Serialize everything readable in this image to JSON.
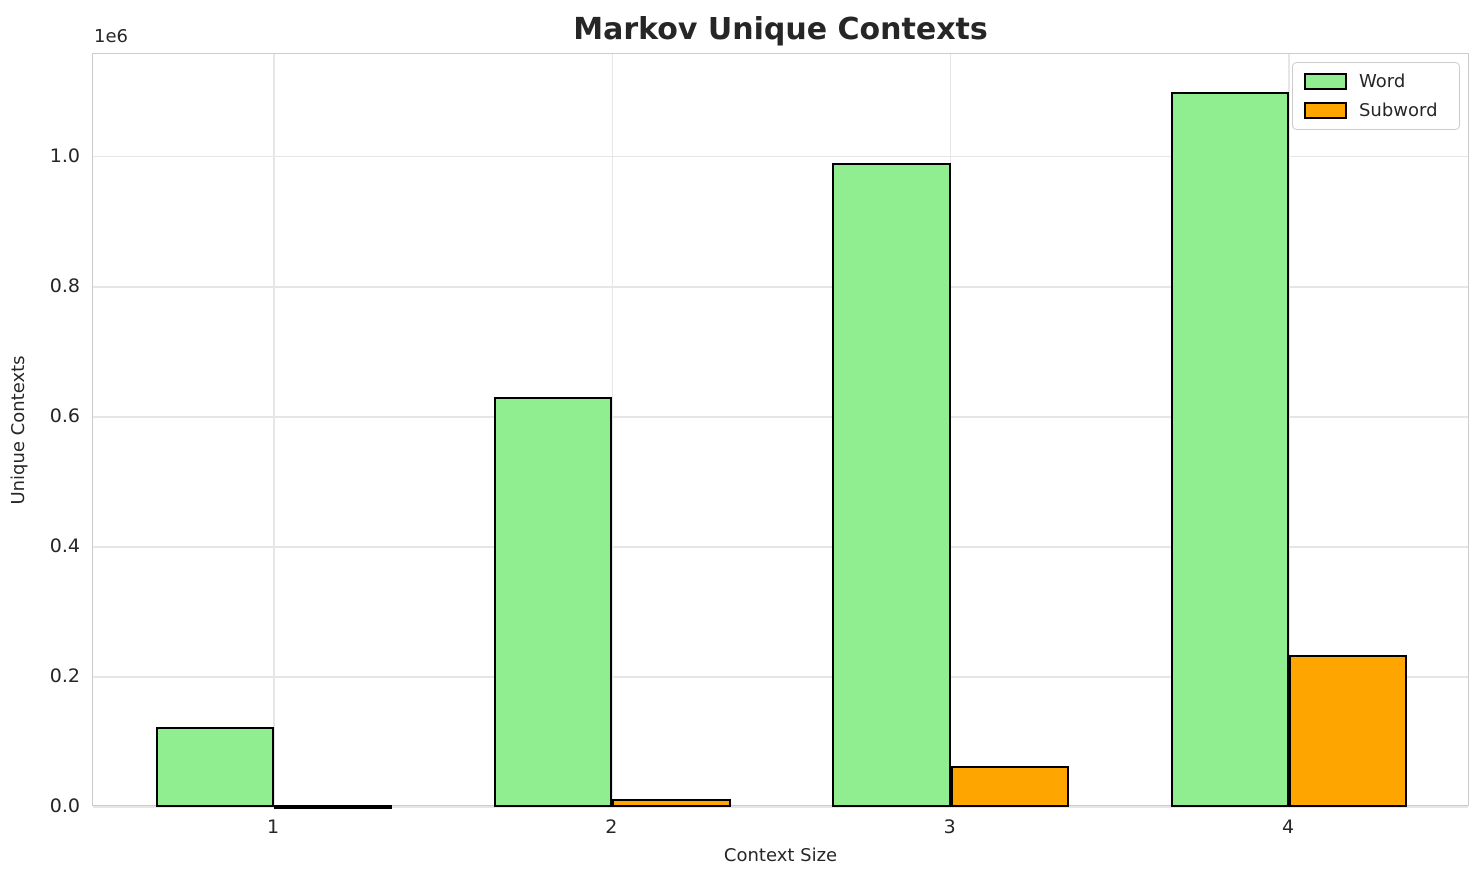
{
  "chart_data": {
    "type": "bar",
    "title": "Markov Unique Contexts",
    "xlabel": "Context Size",
    "ylabel": "Unique Contexts",
    "y_offset_label": "1e6",
    "categories": [
      "1",
      "2",
      "3",
      "4"
    ],
    "series": [
      {
        "name": "Word",
        "color": "#90EE90",
        "values": [
          123000,
          630000,
          990000,
          1100000
        ]
      },
      {
        "name": "Subword",
        "color": "#FFA500",
        "values": [
          2000,
          12000,
          63000,
          233000
        ]
      }
    ],
    "bar_edge_color": "#000000",
    "bar_width": 0.35,
    "ylim": [
      0,
      1158000
    ],
    "xlim": [
      0.465,
      4.535
    ],
    "yticks": {
      "values": [
        0,
        200000,
        400000,
        600000,
        800000,
        1000000
      ],
      "labels": [
        "0.0",
        "0.2",
        "0.4",
        "0.6",
        "0.8",
        "1.0"
      ]
    },
    "grid": true,
    "legend_position": "upper right",
    "legend_labels": [
      "Word",
      "Subword"
    ]
  },
  "colors": {
    "background": "#ffffff",
    "grid": "#e6e6e6",
    "spine": "#cccccc",
    "text": "#262626",
    "word_bar": "#90EE90",
    "subword_bar": "#FFA500",
    "bar_edge": "#000000"
  }
}
